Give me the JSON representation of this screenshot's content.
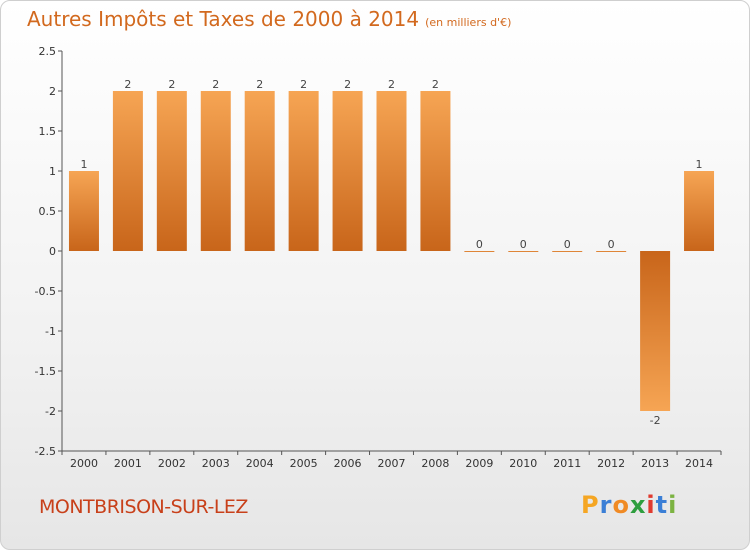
{
  "title": "Autres Impôts et Taxes de 2000 à 2014",
  "subtitle": "(en milliers d'€)",
  "town": "MONTBRISON-SUR-LEZ",
  "logo": {
    "letters": [
      "P",
      "r",
      "o",
      "x",
      "i",
      "t",
      "i"
    ],
    "colors": [
      "#f5a623",
      "#3b7fd6",
      "#f08a24",
      "#2e9e3e",
      "#e03a2f",
      "#3b7fd6",
      "#7cb342"
    ]
  },
  "colors": {
    "bar_light": "#f6a554",
    "bar_dark": "#c8651a",
    "accent": "#d2691e"
  },
  "chart_data": {
    "type": "bar",
    "categories": [
      "2000",
      "2001",
      "2002",
      "2003",
      "2004",
      "2005",
      "2006",
      "2007",
      "2008",
      "2009",
      "2010",
      "2011",
      "2012",
      "2013",
      "2014"
    ],
    "values": [
      1,
      2,
      2,
      2,
      2,
      2,
      2,
      2,
      2,
      0,
      0,
      0,
      0,
      -2,
      1
    ],
    "data_labels": [
      "1",
      "2",
      "2",
      "2",
      "2",
      "2",
      "2",
      "2",
      "2",
      "0",
      "0",
      "0",
      "0",
      "-2",
      "1"
    ],
    "ylim": [
      -2.5,
      2.5
    ],
    "yticks": [
      -2.5,
      -2,
      -1.5,
      -1,
      -0.5,
      0,
      0.5,
      1,
      1.5,
      2,
      2.5
    ],
    "ytick_labels": [
      "-2.5",
      "-2",
      "-1.5",
      "-1",
      "-0.5",
      "0",
      "0.5",
      "1",
      "1.5",
      "2",
      "2.5"
    ],
    "grid": false,
    "legend": "none"
  }
}
